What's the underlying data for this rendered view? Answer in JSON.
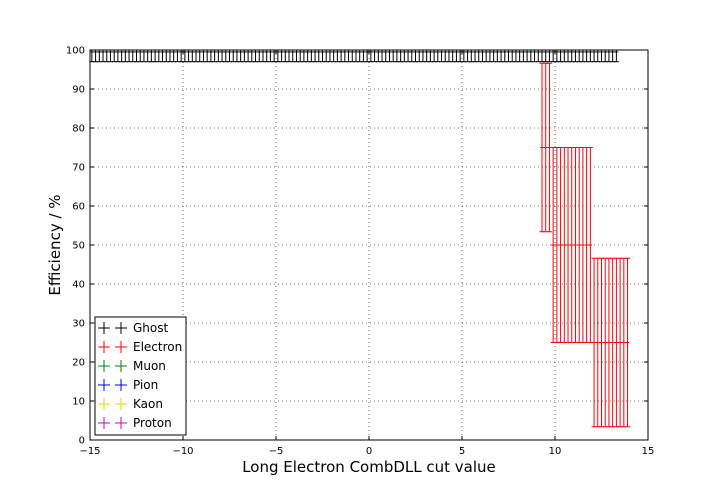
{
  "chart_data": {
    "type": "scatter",
    "title": "",
    "xlabel": "Long Electron CombDLL cut value",
    "ylabel": "Efficiency / %",
    "xlim": [
      -15,
      15
    ],
    "ylim": [
      0,
      100
    ],
    "xticks": [
      -15,
      -10,
      -5,
      0,
      5,
      10,
      15
    ],
    "yticks": [
      0,
      10,
      20,
      30,
      40,
      50,
      60,
      70,
      80,
      90,
      100
    ],
    "xtick_labels": [
      "−15",
      "−10",
      "−5",
      "0",
      "5",
      "10",
      "15"
    ],
    "ytick_labels": [
      "0",
      "10",
      "20",
      "30",
      "40",
      "50",
      "60",
      "70",
      "80",
      "90",
      "100"
    ],
    "grid": true,
    "legend_position": "lower-left",
    "series": [
      {
        "name": "Ghost",
        "color": "#000000",
        "x_start": -14.9,
        "x_end": 13.3,
        "x_step": 0.2,
        "y": 99.5,
        "y_err_low": 2.5,
        "y_err_high": 0.5,
        "x_err": 0.1
      },
      {
        "name": "Electron",
        "color": "#ff0000",
        "points": [
          {
            "x": 9.3,
            "y": 75,
            "yl": 53.4,
            "yh": 96.6
          },
          {
            "x": 9.5,
            "y": 75,
            "yl": 53.4,
            "yh": 96.6
          },
          {
            "x": 9.7,
            "y": 75,
            "yl": 53.4,
            "yh": 96.6
          },
          {
            "x": 9.9,
            "y": 50,
            "yl": 25,
            "yh": 75
          },
          {
            "x": 10.1,
            "y": 50,
            "yl": 25,
            "yh": 75
          },
          {
            "x": 10.3,
            "y": 50,
            "yl": 25,
            "yh": 75
          },
          {
            "x": 10.5,
            "y": 50,
            "yl": 25,
            "yh": 75
          },
          {
            "x": 10.7,
            "y": 50,
            "yl": 25,
            "yh": 75
          },
          {
            "x": 10.9,
            "y": 50,
            "yl": 25,
            "yh": 75
          },
          {
            "x": 11.1,
            "y": 50,
            "yl": 25,
            "yh": 75
          },
          {
            "x": 11.3,
            "y": 50,
            "yl": 25,
            "yh": 75
          },
          {
            "x": 11.5,
            "y": 50,
            "yl": 25,
            "yh": 75
          },
          {
            "x": 11.7,
            "y": 50,
            "yl": 25,
            "yh": 75
          },
          {
            "x": 11.9,
            "y": 50,
            "yl": 25,
            "yh": 75
          },
          {
            "x": 12.1,
            "y": 25,
            "yl": 3.4,
            "yh": 46.6
          },
          {
            "x": 12.3,
            "y": 25,
            "yl": 3.4,
            "yh": 46.6
          },
          {
            "x": 12.5,
            "y": 25,
            "yl": 3.4,
            "yh": 46.6
          },
          {
            "x": 12.7,
            "y": 25,
            "yl": 3.4,
            "yh": 46.6
          },
          {
            "x": 12.9,
            "y": 25,
            "yl": 3.4,
            "yh": 46.6
          },
          {
            "x": 13.1,
            "y": 25,
            "yl": 3.4,
            "yh": 46.6
          },
          {
            "x": 13.3,
            "y": 25,
            "yl": 3.4,
            "yh": 46.6
          },
          {
            "x": 13.5,
            "y": 25,
            "yl": 3.4,
            "yh": 46.6
          },
          {
            "x": 13.7,
            "y": 25,
            "yl": 3.4,
            "yh": 46.6
          },
          {
            "x": 13.9,
            "y": 25,
            "yl": 3.4,
            "yh": 46.6
          }
        ],
        "x_err": 0.1
      },
      {
        "name": "Muon",
        "color": "#008000",
        "points": []
      },
      {
        "name": "Pion",
        "color": "#0000ff",
        "points": []
      },
      {
        "name": "Kaon",
        "color": "#ffcc00",
        "points": []
      },
      {
        "name": "Proton",
        "color": "#cc00cc",
        "points": []
      }
    ]
  }
}
